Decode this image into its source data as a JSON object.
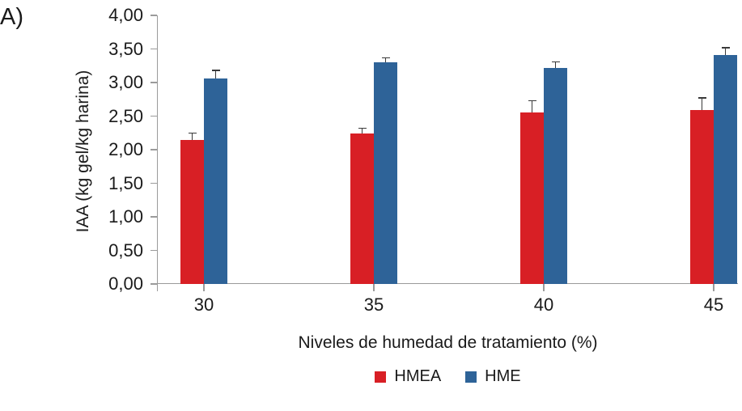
{
  "panel_label": "A)",
  "chart_data": {
    "type": "bar",
    "title": "",
    "categories": [
      "30",
      "35",
      "40",
      "45"
    ],
    "series": [
      {
        "name": "HMEA",
        "color": "#d81f25",
        "values": [
          2.15,
          2.24,
          2.55,
          2.59
        ],
        "errors": [
          0.09,
          0.07,
          0.17,
          0.17
        ]
      },
      {
        "name": "HME",
        "color": "#2e6398",
        "values": [
          3.06,
          3.3,
          3.22,
          3.41
        ],
        "errors": [
          0.11,
          0.06,
          0.08,
          0.1
        ]
      }
    ],
    "xlabel": "Niveles de humedad de tratamiento (%)",
    "ylabel": "IAA (kg gel/kg harina)",
    "ylim": [
      0,
      4
    ],
    "ytick_step": 0.5,
    "ytick_labels": [
      "0,00",
      "0,50",
      "1,00",
      "1,50",
      "2,00",
      "2,50",
      "3,00",
      "3,50",
      "4,00"
    ],
    "decimal_separator": ",",
    "error_bars": "upper",
    "grid": false,
    "legend_position": "bottom",
    "axis_color": "#9b9b9b",
    "text_color": "#1a1a1a"
  }
}
